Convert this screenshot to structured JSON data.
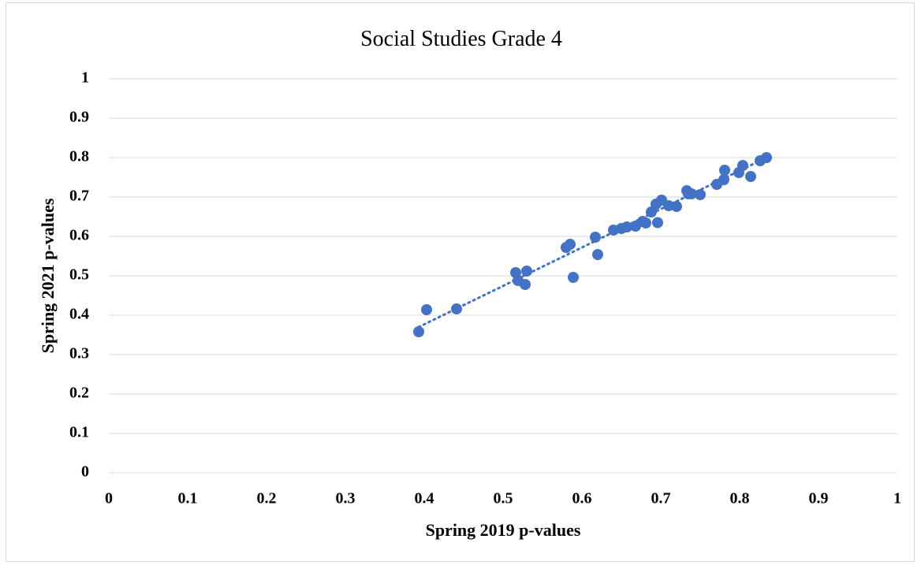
{
  "chart_data": {
    "type": "scatter",
    "title": "Social Studies Grade 4",
    "xlabel": "Spring 2019 p-values",
    "ylabel": "Spring 2021 p-values",
    "color": "#4472c4",
    "grid": true,
    "xlim": [
      0,
      1
    ],
    "ylim": [
      0,
      1
    ],
    "xticks": [
      0,
      0.1,
      0.2,
      0.3,
      0.4,
      0.5,
      0.6,
      0.7,
      0.8,
      0.9,
      1
    ],
    "yticks": [
      0,
      0.1,
      0.2,
      0.3,
      0.4,
      0.5,
      0.6,
      0.7,
      0.8,
      0.9,
      1
    ],
    "x": [
      0.393,
      0.403,
      0.441,
      0.516,
      0.519,
      0.528,
      0.53,
      0.58,
      0.585,
      0.589,
      0.617,
      0.62,
      0.64,
      0.65,
      0.657,
      0.668,
      0.677,
      0.681,
      0.688,
      0.694,
      0.696,
      0.701,
      0.71,
      0.72,
      0.733,
      0.735,
      0.739,
      0.75,
      0.771,
      0.78,
      0.781,
      0.799,
      0.804,
      0.814,
      0.826,
      0.834
    ],
    "values": [
      0.358,
      0.414,
      0.416,
      0.508,
      0.488,
      0.478,
      0.512,
      0.572,
      0.58,
      0.496,
      0.598,
      0.554,
      0.616,
      0.62,
      0.624,
      0.626,
      0.638,
      0.634,
      0.662,
      0.682,
      0.635,
      0.692,
      0.678,
      0.676,
      0.716,
      0.708,
      0.708,
      0.706,
      0.732,
      0.744,
      0.768,
      0.762,
      0.78,
      0.752,
      0.792,
      0.8
    ],
    "trendline": {
      "x": [
        0.393,
        0.834
      ],
      "y": [
        0.37,
        0.8
      ]
    }
  }
}
